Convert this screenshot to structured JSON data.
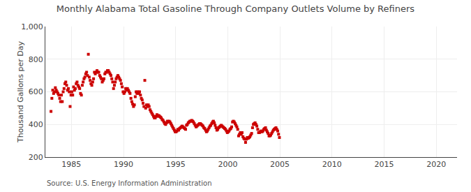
{
  "chart_data": {
    "type": "scatter",
    "title": "Monthly Alabama Total Gasoline Through Company Outlets Volume by Refiners",
    "ylabel": "Thousand Gallons per Day",
    "annotations": [
      "Source: U.S. Energy Information Administration"
    ],
    "color": "#cc0000",
    "marker": "square",
    "grid": true,
    "xlim": [
      1982.5,
      2022
    ],
    "ylim": [
      200,
      1000
    ],
    "xticks": [
      1985,
      1990,
      1995,
      2000,
      2005,
      2010,
      2015,
      2020
    ],
    "yticks": [
      200,
      400,
      600,
      800,
      {
        "value": 1000,
        "label": "1,000"
      }
    ],
    "x": [
      1983.0417,
      1983.125,
      1983.2083,
      1983.2917,
      1983.375,
      1983.4583,
      1983.5417,
      1983.625,
      1983.7083,
      1983.7917,
      1983.875,
      1983.9583,
      1984.0417,
      1984.125,
      1984.2083,
      1984.2917,
      1984.375,
      1984.4583,
      1984.5417,
      1984.625,
      1984.7083,
      1984.7917,
      1984.875,
      1984.9583,
      1985.0417,
      1985.125,
      1985.2083,
      1985.2917,
      1985.375,
      1985.4583,
      1985.5417,
      1985.625,
      1985.7083,
      1985.7917,
      1985.875,
      1985.9583,
      1986.0417,
      1986.125,
      1986.2083,
      1986.2917,
      1986.375,
      1986.4583,
      1986.5417,
      1986.625,
      1986.7083,
      1986.7917,
      1986.875,
      1986.9583,
      1987.0417,
      1987.125,
      1987.2083,
      1987.2917,
      1987.375,
      1987.4583,
      1987.5417,
      1987.625,
      1987.7083,
      1987.7917,
      1987.875,
      1987.9583,
      1988.0417,
      1988.125,
      1988.2083,
      1988.2917,
      1988.375,
      1988.4583,
      1988.5417,
      1988.625,
      1988.7083,
      1988.7917,
      1988.875,
      1988.9583,
      1989.0417,
      1989.125,
      1989.2083,
      1989.2917,
      1989.375,
      1989.4583,
      1989.5417,
      1989.625,
      1989.7083,
      1989.7917,
      1989.875,
      1989.9583,
      1990.0417,
      1990.125,
      1990.2083,
      1990.2917,
      1990.375,
      1990.4583,
      1990.5417,
      1990.625,
      1990.7083,
      1990.7917,
      1990.875,
      1990.9583,
      1991.0417,
      1991.125,
      1991.2083,
      1991.2917,
      1991.375,
      1991.4583,
      1991.5417,
      1991.625,
      1991.7083,
      1991.7917,
      1991.875,
      1991.9583,
      1992.0417,
      1992.125,
      1992.2083,
      1992.2917,
      1992.375,
      1992.4583,
      1992.5417,
      1992.625,
      1992.7083,
      1992.7917,
      1992.875,
      1992.9583,
      1993.0417,
      1993.125,
      1993.2083,
      1993.2917,
      1993.375,
      1993.4583,
      1993.5417,
      1993.625,
      1993.7083,
      1993.7917,
      1993.875,
      1993.9583,
      1994.0417,
      1994.125,
      1994.2083,
      1994.2917,
      1994.375,
      1994.4583,
      1994.5417,
      1994.625,
      1994.7083,
      1994.7917,
      1994.875,
      1994.9583,
      1995.0417,
      1995.125,
      1995.2083,
      1995.2917,
      1995.375,
      1995.4583,
      1995.5417,
      1995.625,
      1995.7083,
      1995.7917,
      1995.875,
      1995.9583,
      1996.0417,
      1996.125,
      1996.2083,
      1996.2917,
      1996.375,
      1996.4583,
      1996.5417,
      1996.625,
      1996.7083,
      1996.7917,
      1996.875,
      1996.9583,
      1997.0417,
      1997.125,
      1997.2083,
      1997.2917,
      1997.375,
      1997.4583,
      1997.5417,
      1997.625,
      1997.7083,
      1997.7917,
      1997.875,
      1997.9583,
      1998.0417,
      1998.125,
      1998.2083,
      1998.2917,
      1998.375,
      1998.4583,
      1998.5417,
      1998.625,
      1998.7083,
      1998.7917,
      1998.875,
      1998.9583,
      1999.0417,
      1999.125,
      1999.2083,
      1999.2917,
      1999.375,
      1999.4583,
      1999.5417,
      1999.625,
      1999.7083,
      1999.7917,
      1999.875,
      1999.9583,
      2000.0417,
      2000.125,
      2000.2083,
      2000.2917,
      2000.375,
      2000.4583,
      2000.5417,
      2000.625,
      2000.7083,
      2000.7917,
      2000.875,
      2000.9583,
      2001.0417,
      2001.125,
      2001.2083,
      2001.2917,
      2001.375,
      2001.4583,
      2001.5417,
      2001.625,
      2001.7083,
      2001.7917,
      2001.875,
      2001.9583,
      2002.0417,
      2002.125,
      2002.2083,
      2002.2917,
      2002.375,
      2002.4583,
      2002.5417,
      2002.625,
      2002.7083,
      2002.7917,
      2002.875,
      2002.9583,
      2003.0417,
      2003.125,
      2003.2083,
      2003.2917,
      2003.375,
      2003.4583,
      2003.5417,
      2003.625,
      2003.7083,
      2003.7917,
      2003.875,
      2003.9583,
      2004.0417,
      2004.125,
      2004.2083,
      2004.2917,
      2004.375,
      2004.4583,
      2004.5417,
      2004.625,
      2004.7083,
      2004.7917,
      2004.875,
      2004.9583
    ],
    "values": [
      480,
      560,
      610,
      590,
      600,
      625,
      610,
      600,
      590,
      580,
      560,
      540,
      580,
      540,
      600,
      620,
      650,
      660,
      640,
      610,
      620,
      600,
      510,
      580,
      600,
      580,
      630,
      610,
      620,
      650,
      660,
      640,
      630,
      620,
      590,
      580,
      640,
      660,
      680,
      690,
      710,
      720,
      700,
      830,
      690,
      670,
      650,
      640,
      660,
      680,
      720,
      710,
      720,
      730,
      720,
      720,
      700,
      690,
      680,
      660,
      670,
      680,
      710,
      720,
      720,
      730,
      730,
      720,
      710,
      700,
      680,
      660,
      620,
      640,
      660,
      680,
      690,
      700,
      690,
      680,
      670,
      650,
      630,
      600,
      590,
      600,
      620,
      610,
      620,
      610,
      600,
      590,
      560,
      540,
      525,
      510,
      520,
      570,
      600,
      590,
      600,
      590,
      600,
      580,
      560,
      550,
      530,
      510,
      670,
      500,
      520,
      510,
      520,
      510,
      490,
      480,
      470,
      460,
      450,
      440,
      440,
      450,
      460,
      450,
      455,
      450,
      445,
      440,
      430,
      425,
      415,
      405,
      400,
      410,
      420,
      415,
      420,
      415,
      405,
      395,
      385,
      375,
      365,
      355,
      355,
      360,
      370,
      365,
      375,
      380,
      385,
      390,
      385,
      380,
      375,
      370,
      395,
      400,
      410,
      415,
      420,
      420,
      425,
      420,
      415,
      405,
      395,
      385,
      390,
      395,
      400,
      405,
      405,
      400,
      395,
      390,
      380,
      375,
      365,
      355,
      360,
      370,
      380,
      390,
      395,
      405,
      415,
      420,
      410,
      395,
      380,
      365,
      370,
      380,
      385,
      390,
      395,
      390,
      385,
      380,
      375,
      370,
      360,
      350,
      355,
      360,
      370,
      375,
      385,
      415,
      420,
      415,
      405,
      395,
      385,
      370,
      330,
      340,
      350,
      340,
      350,
      325,
      315,
      310,
      290,
      310,
      320,
      315,
      320,
      325,
      335,
      345,
      380,
      400,
      405,
      410,
      400,
      390,
      370,
      350,
      350,
      355,
      360,
      355,
      360,
      370,
      375,
      380,
      365,
      355,
      345,
      330,
      330,
      335,
      345,
      355,
      365,
      370,
      375,
      380,
      370,
      360,
      340,
      320
    ]
  }
}
